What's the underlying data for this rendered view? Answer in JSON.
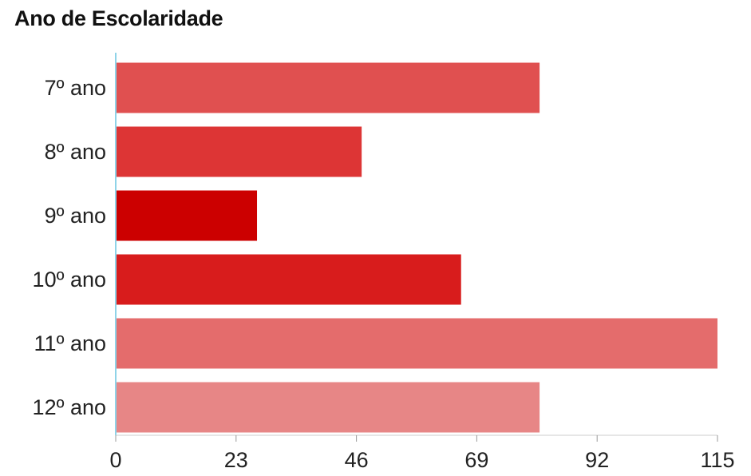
{
  "chart_data": {
    "type": "bar",
    "orientation": "horizontal",
    "title": "Ano de Escolaridade",
    "categories": [
      "7º ano",
      "8º ano",
      "9º ano",
      "10º ano",
      "11º ano",
      "12º ano"
    ],
    "values": [
      81,
      47,
      27,
      66,
      115,
      81
    ],
    "colors": [
      "#e05050",
      "#dd3535",
      "#cc0000",
      "#d81c1c",
      "#e46c6c",
      "#e78686"
    ],
    "xlim": [
      0,
      115
    ],
    "xticks": [
      "0",
      "23",
      "46",
      "69",
      "92",
      "115"
    ],
    "axis_color": "#8fd3e8",
    "grid": false,
    "legend": "none"
  }
}
